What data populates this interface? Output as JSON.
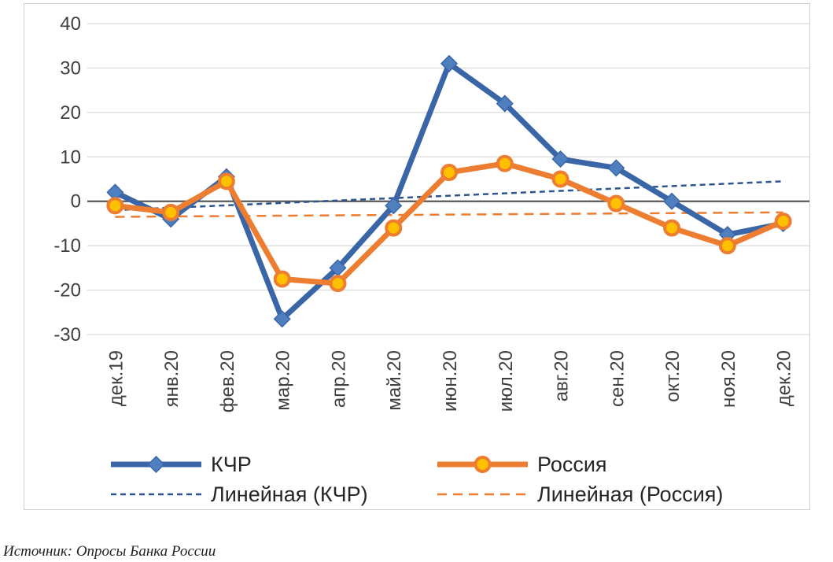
{
  "chart_data": {
    "type": "line",
    "categories": [
      "дек.19",
      "янв.20",
      "фев.20",
      "мар.20",
      "апр.20",
      "май.20",
      "июн.20",
      "июл.20",
      "авг.20",
      "сен.20",
      "окт.20",
      "ноя.20",
      "дек.20"
    ],
    "ylim": [
      -30,
      40
    ],
    "yticks": [
      40,
      30,
      20,
      10,
      0,
      -10,
      -20,
      -30
    ],
    "grid": true,
    "legend_position": "bottom",
    "series": [
      {
        "name": "КЧР",
        "color": "#3a66a8",
        "marker": "diamond",
        "values": [
          2,
          -4,
          5.5,
          -26.5,
          -15,
          -1,
          31,
          22,
          9.5,
          7.5,
          0,
          -7.5,
          -5
        ]
      },
      {
        "name": "Россия",
        "color": "#ed7d31",
        "marker": "circle",
        "values": [
          -1,
          -2.5,
          4.5,
          -17.5,
          -18.5,
          -6,
          6.5,
          8.5,
          5,
          -0.5,
          -6,
          -10,
          -4.5
        ]
      }
    ],
    "trendlines": [
      {
        "name": "Линейная (КЧР)",
        "color": "#2e5590",
        "start": -2,
        "end": 4.5
      },
      {
        "name": "Линейная (Россия)",
        "color": "#ed7d31",
        "start": -3.5,
        "end": -2.5
      }
    ]
  },
  "source_note": "Источник: Опросы Банка России"
}
